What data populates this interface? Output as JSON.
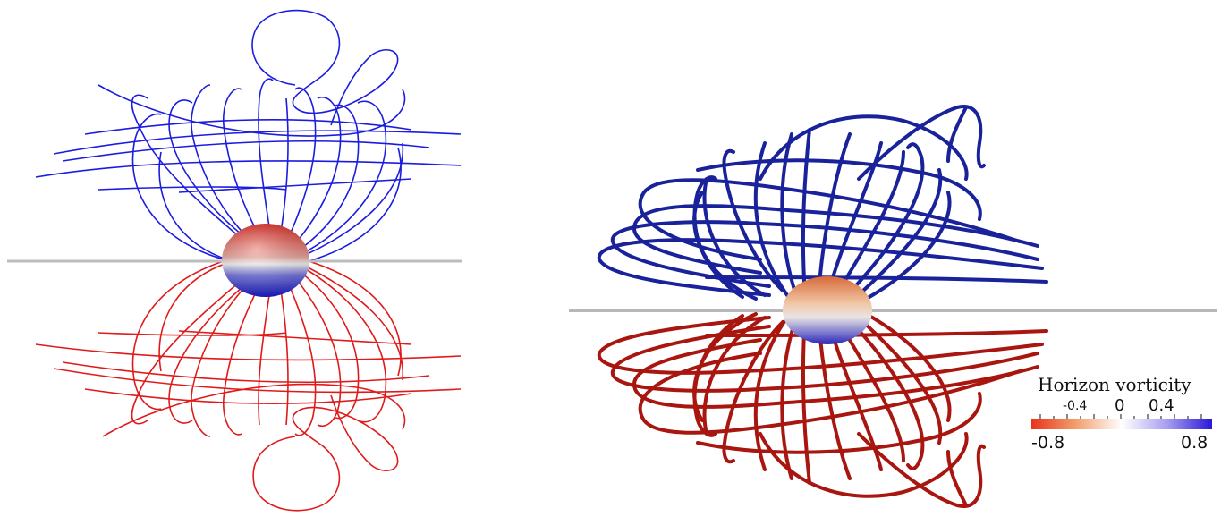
{
  "colorbar": {
    "title": "Horizon vorticity",
    "ticks_minor": [
      "-0.4",
      "0",
      "0.4"
    ],
    "tick_min": "-0.8",
    "tick_max": "0.8",
    "range": [
      -0.8,
      0.8
    ],
    "colors": {
      "negative": "#e8341a",
      "zero": "#ffffff",
      "positive": "#2a18d8"
    }
  },
  "colors": {
    "left_positive": "#1c1ce0",
    "left_negative": "#e01a1a",
    "right_positive": "#19229a",
    "right_negative": "#a8160f",
    "horizon_line": "#b8b8b8"
  }
}
